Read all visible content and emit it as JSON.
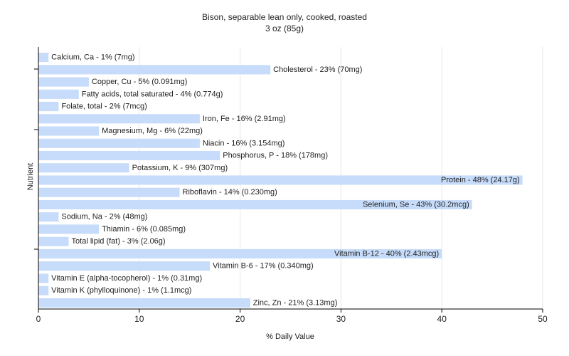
{
  "chart_data": {
    "type": "bar",
    "orientation": "horizontal",
    "title": "Bison, separable lean only, cooked, roasted",
    "subtitle": "3 oz (85g)",
    "xlabel": "% Daily Value",
    "ylabel": "Nutrient",
    "xlim": [
      0,
      50
    ],
    "xticks": [
      0,
      10,
      20,
      30,
      40,
      50
    ],
    "grid": true,
    "bar_color": "#c6dcfa",
    "categories": [
      "Calcium, Ca",
      "Cholesterol",
      "Copper, Cu",
      "Fatty acids, total saturated",
      "Folate, total",
      "Iron, Fe",
      "Magnesium, Mg",
      "Niacin",
      "Phosphorus, P",
      "Potassium, K",
      "Protein",
      "Riboflavin",
      "Selenium, Se",
      "Sodium, Na",
      "Thiamin",
      "Total lipid (fat)",
      "Vitamin B-12",
      "Vitamin B-6",
      "Vitamin E (alpha-tocopherol)",
      "Vitamin K (phylloquinone)",
      "Zinc, Zn"
    ],
    "values": [
      1,
      23,
      5,
      4,
      2,
      16,
      6,
      16,
      18,
      9,
      48,
      14,
      43,
      2,
      6,
      3,
      40,
      17,
      1,
      1,
      21
    ],
    "labels": [
      "Calcium, Ca - 1% (7mg)",
      "Cholesterol - 23% (70mg)",
      "Copper, Cu - 5% (0.091mg)",
      "Fatty acids, total saturated - 4% (0.774g)",
      "Folate, total - 2% (7mcg)",
      "Iron, Fe - 16% (2.91mg)",
      "Magnesium, Mg - 6% (22mg)",
      "Niacin - 16% (3.154mg)",
      "Phosphorus, P - 18% (178mg)",
      "Potassium, K - 9% (307mg)",
      "Protein - 48% (24.17g)",
      "Riboflavin - 14% (0.230mg)",
      "Selenium, Se - 43% (30.2mcg)",
      "Sodium, Na - 2% (48mg)",
      "Thiamin - 6% (0.085mg)",
      "Total lipid (fat) - 3% (2.06g)",
      "Vitamin B-12 - 40% (2.43mcg)",
      "Vitamin B-6 - 17% (0.340mg)",
      "Vitamin E (alpha-tocopherol) - 1% (0.31mg)",
      "Vitamin K (phylloquinone) - 1% (1.1mcg)",
      "Zinc, Zn - 21% (3.13mg)"
    ]
  }
}
